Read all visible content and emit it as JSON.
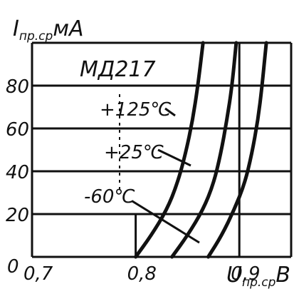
{
  "chart_data": {
    "type": "line",
    "title": "МД217",
    "ylabel": {
      "symbol": "I",
      "subscript": "пр.ср",
      "unit": "мА"
    },
    "xlabel": {
      "symbol": "U",
      "subscript": "пр.ср",
      "unit": "В"
    },
    "xlim": [
      0.7,
      0.95
    ],
    "ylim": [
      0,
      100
    ],
    "x_ticks": [
      "0,7",
      "0,8",
      "0,9"
    ],
    "x_tick_values": [
      0.7,
      0.8,
      0.9
    ],
    "y_ticks": [
      "0",
      "20",
      "40",
      "60",
      "80"
    ],
    "y_tick_values": [
      0,
      20,
      40,
      60,
      80
    ],
    "origin_label": "0",
    "grid": true,
    "series": [
      {
        "name": "+125℃",
        "x": [
          0.8,
          0.815,
          0.83,
          0.84,
          0.848,
          0.855,
          0.86,
          0.865
        ],
        "y": [
          0,
          10,
          22,
          34,
          48,
          64,
          80,
          100
        ]
      },
      {
        "name": "+25℃",
        "x": [
          0.835,
          0.85,
          0.865,
          0.875,
          0.882,
          0.888,
          0.893,
          0.897
        ],
        "y": [
          0,
          10,
          22,
          34,
          48,
          64,
          80,
          100
        ]
      },
      {
        "name": "-60℃",
        "x": [
          0.87,
          0.883,
          0.895,
          0.905,
          0.912,
          0.918,
          0.922,
          0.926
        ],
        "y": [
          0,
          10,
          22,
          34,
          48,
          64,
          80,
          100
        ]
      }
    ]
  },
  "colors": {
    "ink": "#111111",
    "background": "#ffffff"
  }
}
